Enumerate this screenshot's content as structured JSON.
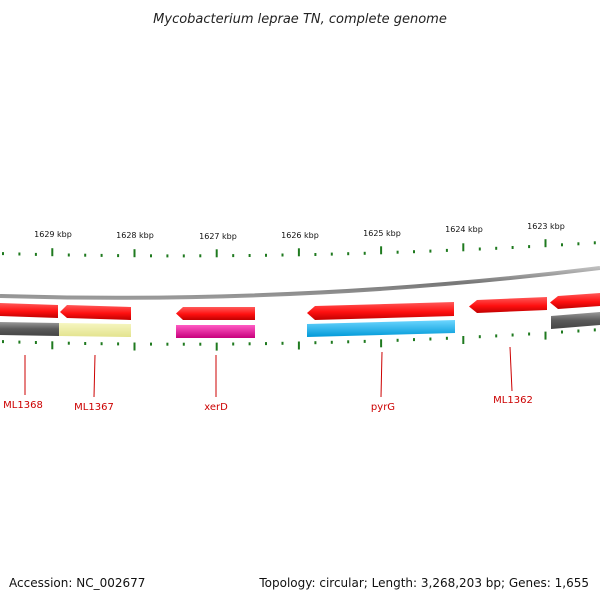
{
  "title": "Mycobacterium leprae TN, complete genome",
  "tick_labels": [
    "1629 kbp",
    "1628 kbp",
    "1627 kbp",
    "1626 kbp",
    "1625 kbp",
    "1624 kbp",
    "1623 kbp"
  ],
  "gene_labels": [
    "ML1368",
    "ML1367",
    "xerD",
    "pyrG",
    "ML1362"
  ],
  "footer": {
    "accession": "Accession: NC_002677",
    "summary": "Topology: circular; Length: 3,268,203 bp; Genes: 1,655"
  },
  "colors": {
    "tick": "#1f7a1f",
    "backbone": "#888888",
    "gene_red": "#ff1a1a",
    "gray_feature": "#666666",
    "khaki_feature": "#eeeea0",
    "magenta_feature": "#e0199a",
    "cyan_feature": "#1ab0e8",
    "label_red": "#cc0000"
  }
}
